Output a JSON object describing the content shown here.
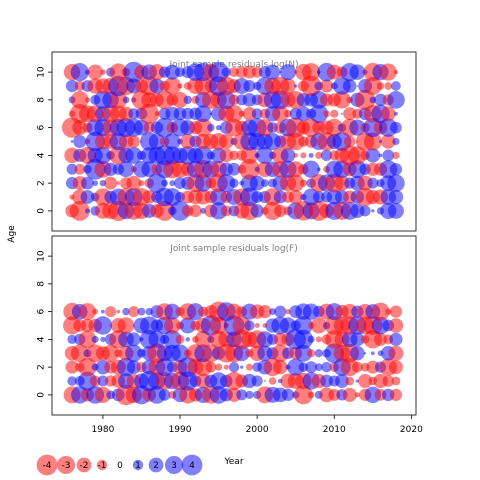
{
  "chart_data": {
    "type": "scatter",
    "subtype": "bubble-residuals",
    "xlabel": "Year",
    "ylabel": "Age",
    "x_ticks": [
      1980,
      1990,
      2000,
      2010,
      2020
    ],
    "colors": {
      "positive": "#0000ff",
      "negative": "#ff0000",
      "axis": "#000000",
      "title": "#808080"
    },
    "panels": [
      {
        "title": "Joint sample residuals log(N)",
        "years": [
          1976,
          2018
        ],
        "ages": [
          0,
          10
        ],
        "y_ticks": [
          0,
          2,
          4,
          6,
          8,
          10
        ],
        "xlim": [
          1973.4,
          2020.6
        ],
        "ylim": [
          -1.45,
          11.45
        ],
        "seed": 17
      },
      {
        "title": "Joint sample residuals log(F)",
        "years": [
          1976,
          2018
        ],
        "ages": [
          0,
          6
        ],
        "y_ticks": [
          0,
          2,
          4,
          6,
          8,
          10
        ],
        "xlim": [
          1973.4,
          2020.6
        ],
        "ylim": [
          -1.45,
          11.45
        ],
        "seed": 53
      }
    ],
    "legend": {
      "values": [
        -4,
        -3,
        -2,
        -1,
        0,
        1,
        2,
        3,
        4
      ],
      "labels": [
        "-4",
        "-3",
        "-2",
        "-1",
        "0",
        "1",
        "2",
        "3",
        "4"
      ]
    }
  }
}
